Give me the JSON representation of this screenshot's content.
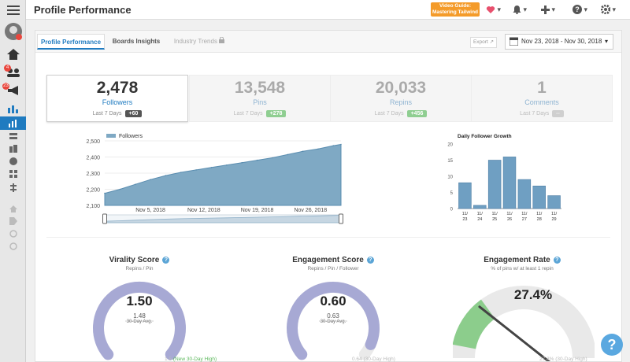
{
  "header": {
    "title": "Profile Performance",
    "video_guide_line1": "Video Guide:",
    "video_guide_line2": "Mastering Tailwind"
  },
  "sidebar": {
    "badges": {
      "team": "4",
      "campaigns": "23"
    }
  },
  "tabs": [
    {
      "label": "Profile Performance",
      "active": true
    },
    {
      "label": "Boards Insights",
      "active": false
    },
    {
      "label": "Industry Trends",
      "locked": true
    }
  ],
  "toolbar": {
    "export_label": "Export",
    "date_range": "Nov 23, 2018 - Nov 30, 2018"
  },
  "stats": [
    {
      "value": "2,478",
      "label": "Followers",
      "period": "Last 7 Days",
      "change": "+60"
    },
    {
      "value": "13,548",
      "label": "Pins",
      "period": "Last 7 Days",
      "change": "+278"
    },
    {
      "value": "20,033",
      "label": "Repins",
      "period": "Last 7 Days",
      "change": "+456"
    },
    {
      "value": "1",
      "label": "Comments",
      "period": "Last 7 Days",
      "change": "--"
    }
  ],
  "chart_data": [
    {
      "type": "area",
      "legend": "Followers",
      "legend_position": "top-left",
      "y_ticks": [
        "2,500",
        "2,400",
        "2,300",
        "2,200",
        "2,100"
      ],
      "ylim": [
        2100,
        2500
      ],
      "x_ticks": [
        "Nov 5, 2018",
        "Nov 12, 2018",
        "Nov 19, 2018",
        "Nov 26, 2018"
      ],
      "x": [
        "2018-10-30",
        "2018-11-01",
        "2018-11-03",
        "2018-11-05",
        "2018-11-07",
        "2018-11-09",
        "2018-11-11",
        "2018-11-13",
        "2018-11-15",
        "2018-11-17",
        "2018-11-19",
        "2018-11-21",
        "2018-11-23",
        "2018-11-25",
        "2018-11-27",
        "2018-11-29",
        "2018-11-30"
      ],
      "values": [
        2175,
        2200,
        2230,
        2260,
        2285,
        2305,
        2320,
        2335,
        2350,
        2365,
        2380,
        2395,
        2415,
        2435,
        2450,
        2470,
        2478
      ],
      "grid": true
    },
    {
      "type": "bar",
      "title": "Daily Follower Growth",
      "categories": [
        "11/ 23",
        "11/ 24",
        "11/ 25",
        "11/ 26",
        "11/ 27",
        "11/ 28",
        "11/ 29"
      ],
      "values": [
        8,
        1,
        15,
        16,
        9,
        7,
        4
      ],
      "y_ticks": [
        "20",
        "15",
        "10",
        "5",
        "0"
      ],
      "ylim": [
        0,
        20
      ]
    }
  ],
  "gauges": [
    {
      "title": "Virality Score",
      "subtitle": "Repins / Pin",
      "value": "1.50",
      "avg": "1.48",
      "avg_label": "30-Day Avg.",
      "footer_left": "1.5",
      "footer_right": "(New 30-Day High)"
    },
    {
      "title": "Engagement Score",
      "subtitle": "Repins / Pin / Follower",
      "value": "0.60",
      "avg": "0.63",
      "avg_label": "30-Day Avg.",
      "footer_right": "0.64 (30-Day High)"
    },
    {
      "title": "Engagement Rate",
      "subtitle": "% of pins w/ at least 1 repin",
      "value": "27.4%",
      "footer_right": "27.8% (30-Day High)"
    }
  ],
  "colors": {
    "accent": "#1f7bc0",
    "area_fill": "#7fa9c4",
    "bar_fill": "#6f9fc2",
    "gauge_purple": "#a7a9d4",
    "gauge_green": "#8ccd8c"
  },
  "help": "?"
}
